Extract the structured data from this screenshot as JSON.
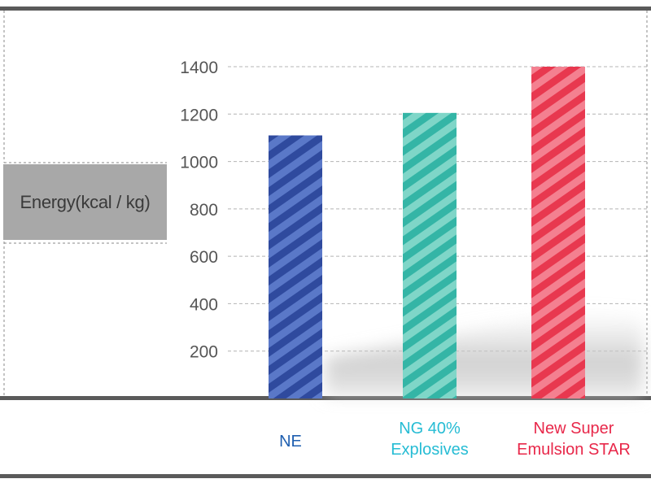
{
  "colors": {
    "frame": "#5a5a5a",
    "grid": "#b4b4b4",
    "tick_text": "#555555",
    "label_bg": "#a8a8a8"
  },
  "chart_data": {
    "type": "bar",
    "title": "",
    "xlabel": "",
    "ylabel": "Energy(kcal / kg)",
    "ylim": [
      0,
      1400
    ],
    "yticks": [
      200,
      400,
      600,
      800,
      1000,
      1200,
      1400
    ],
    "grid": true,
    "categories": [
      "NE",
      "NG 40%\nExplosives",
      "New Super\nEmulsion STAR"
    ],
    "values": [
      1110,
      1205,
      1400
    ],
    "bar_colors": [
      {
        "base": "#5a78c8",
        "stripe": "#2f4a9e",
        "label": "#1f5fb0"
      },
      {
        "base": "#7fd6c8",
        "stripe": "#34b5a6",
        "label": "#26bcd4"
      },
      {
        "base": "#f48090",
        "stripe": "#e8384f",
        "label": "#e8284a"
      }
    ]
  }
}
